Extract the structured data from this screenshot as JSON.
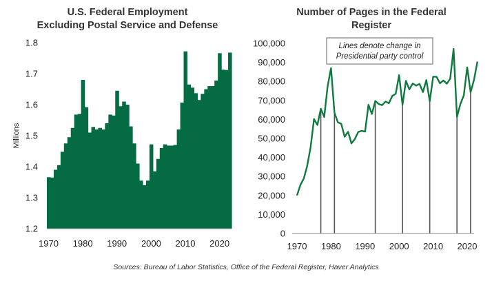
{
  "source_note": "Sources: Bureau of Labor Statistics, Office of the Federal Register, Haver Analytics",
  "colors": {
    "bar": "#046B43",
    "line": "#0E7A3E",
    "vline": "#555555",
    "axis": "#888888"
  },
  "chart_data": [
    {
      "type": "bar",
      "title": "U.S. Federal Employment",
      "subtitle": "Excluding Postal Service and Defense",
      "xlabel": "",
      "ylabel": "Millions",
      "ylim": [
        1.2,
        1.8
      ],
      "yticks": [
        "1.2",
        "1.3",
        "1.4",
        "1.5",
        "1.6",
        "1.7",
        "1.8"
      ],
      "xticks": [
        "1970",
        "1980",
        "1990",
        "2000",
        "2010",
        "2020"
      ],
      "grid": false,
      "categories": [
        1970,
        1971,
        1972,
        1973,
        1974,
        1975,
        1976,
        1977,
        1978,
        1979,
        1980,
        1981,
        1982,
        1983,
        1984,
        1985,
        1986,
        1987,
        1988,
        1989,
        1990,
        1991,
        1992,
        1993,
        1994,
        1995,
        1996,
        1997,
        1998,
        1999,
        2000,
        2001,
        2002,
        2003,
        2004,
        2005,
        2006,
        2007,
        2008,
        2009,
        2010,
        2011,
        2012,
        2013,
        2014,
        2015,
        2016,
        2017,
        2018,
        2019,
        2020,
        2021,
        2022,
        2023
      ],
      "values": [
        1.366,
        1.365,
        1.39,
        1.405,
        1.448,
        1.475,
        1.495,
        1.525,
        1.568,
        1.57,
        1.68,
        1.592,
        1.51,
        1.528,
        1.52,
        1.525,
        1.52,
        1.54,
        1.568,
        1.565,
        1.645,
        1.595,
        1.61,
        1.6,
        1.53,
        1.475,
        1.41,
        1.355,
        1.34,
        1.355,
        1.472,
        1.385,
        1.425,
        1.46,
        1.472,
        1.468,
        1.468,
        1.47,
        1.52,
        1.607,
        1.772,
        1.665,
        1.655,
        1.637,
        1.615,
        1.635,
        1.65,
        1.66,
        1.66,
        1.678,
        1.766,
        1.713,
        1.712,
        1.768
      ]
    },
    {
      "type": "line",
      "title": "Number of Pages in the Federal",
      "subtitle": "Register",
      "xlabel": "",
      "ylabel": "",
      "ylim": [
        0,
        100000
      ],
      "yticks": [
        "0",
        "10,000",
        "20,000",
        "30,000",
        "40,000",
        "50,000",
        "60,000",
        "70,000",
        "80,000",
        "90,000",
        "100,000"
      ],
      "xticks": [
        "1970",
        "1980",
        "1990",
        "2000",
        "2010",
        "2020"
      ],
      "grid": false,
      "annotation": "Lines denote change in Presidential party control",
      "party_change_years": [
        1977,
        1981,
        1993,
        2001,
        2009,
        2017,
        2021
      ],
      "x": [
        1970,
        1971,
        1972,
        1973,
        1974,
        1975,
        1976,
        1977,
        1978,
        1979,
        1980,
        1981,
        1982,
        1983,
        1984,
        1985,
        1986,
        1987,
        1988,
        1989,
        1990,
        1991,
        1992,
        1993,
        1994,
        1995,
        1996,
        1997,
        1998,
        1999,
        2000,
        2001,
        2002,
        2003,
        2004,
        2005,
        2006,
        2007,
        2008,
        2009,
        2010,
        2011,
        2012,
        2013,
        2014,
        2015,
        2016,
        2017,
        2018,
        2019,
        2020,
        2021,
        2022,
        2023
      ],
      "values": [
        20000,
        25500,
        28900,
        35600,
        45400,
        60200,
        57100,
        65600,
        61300,
        77500,
        87000,
        63600,
        58500,
        57700,
        50900,
        53500,
        47400,
        49700,
        53400,
        54000,
        53600,
        67700,
        62900,
        69700,
        68100,
        67500,
        69400,
        68500,
        72400,
        73500,
        83300,
        67700,
        80300,
        75800,
        78900,
        77800,
        78700,
        74400,
        80700,
        69600,
        82500,
        82400,
        79000,
        80500,
        78800,
        81400,
        97100,
        61300,
        68100,
        72600,
        87400,
        74300,
        80800,
        90400
      ]
    }
  ]
}
